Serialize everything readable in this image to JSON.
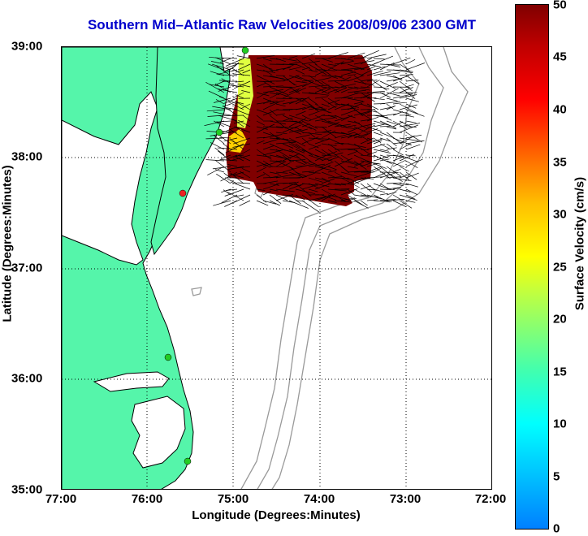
{
  "title": "Southern Mid–Atlantic Raw Velocities 2008/09/06 2300 GMT",
  "map": {
    "x_axis": {
      "label": "Longitude (Degrees:Minutes)",
      "ticks": [
        "77:00",
        "76:00",
        "75:00",
        "74:00",
        "73:00",
        "72:00"
      ],
      "range_lon": [
        -77,
        -72
      ]
    },
    "y_axis": {
      "label": "Latitude (Degrees:Minutes)",
      "ticks": [
        "39:00",
        "38:00",
        "37:00",
        "36:00",
        "35:00"
      ],
      "range_lat": [
        35,
        39
      ]
    },
    "grid": "dotted",
    "land_color": "#55f5aa",
    "coast_color": "#000000",
    "bathymetry_color": "#999999",
    "velocity_field_color": "#800000",
    "station_color": "#22cc22",
    "highlight_station_color": "#ee2222"
  },
  "colorbar": {
    "label": "Surface Velocity (cm/s)",
    "ticks": [
      "50",
      "45",
      "40",
      "35",
      "30",
      "25",
      "20",
      "15",
      "10",
      "5",
      "0"
    ],
    "range": [
      0,
      50
    ]
  }
}
